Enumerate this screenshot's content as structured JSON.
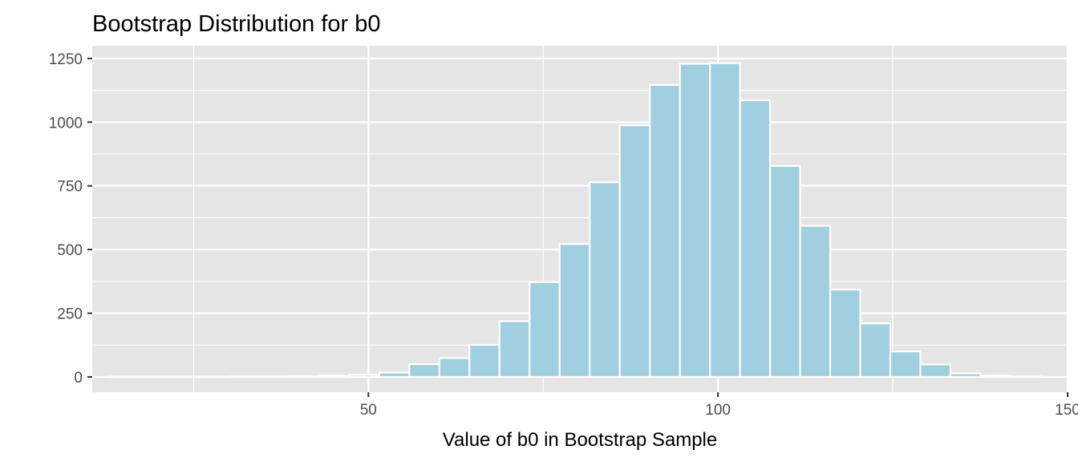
{
  "chart_data": {
    "type": "bar",
    "title": "Bootstrap Distribution for b0",
    "xlabel": "Value of b0 in Bootstrap Sample",
    "ylabel": "",
    "xlim": [
      10.5,
      150
    ],
    "ylim": [
      -60,
      1300
    ],
    "x_ticks": [
      50,
      100,
      150
    ],
    "x_tick_labels": [
      "50",
      "100",
      "150"
    ],
    "y_ticks": [
      0,
      250,
      500,
      750,
      1000,
      1250
    ],
    "y_tick_labels": [
      "0",
      "250",
      "500",
      "750",
      "1000",
      "1250"
    ],
    "x_minor_ticks": [
      25,
      75,
      125
    ],
    "y_minor_ticks": [
      125,
      375,
      625,
      875,
      1125
    ],
    "grid": true,
    "bin_width": 4.3,
    "bin_centers": [
      15.0,
      19.3,
      23.6,
      27.9,
      32.2,
      36.5,
      40.8,
      45.1,
      49.4,
      53.7,
      58.0,
      62.3,
      66.6,
      70.9,
      75.2,
      79.5,
      83.8,
      88.1,
      92.4,
      96.7,
      101.0,
      105.3,
      109.6,
      113.9,
      118.2,
      122.5,
      126.8,
      131.1,
      135.4,
      139.7,
      144.0
    ],
    "values": [
      1,
      1,
      1,
      1,
      2,
      2,
      3,
      5,
      8,
      17,
      50,
      74,
      126,
      219,
      372,
      522,
      764,
      988,
      1146,
      1229,
      1232,
      1086,
      828,
      593,
      343,
      210,
      100,
      49,
      14,
      5,
      2
    ],
    "colors": {
      "fill": "#a0cfe0",
      "outline": "#ffffff",
      "panel": "#e5e5e5",
      "grid": "#ffffff"
    }
  }
}
